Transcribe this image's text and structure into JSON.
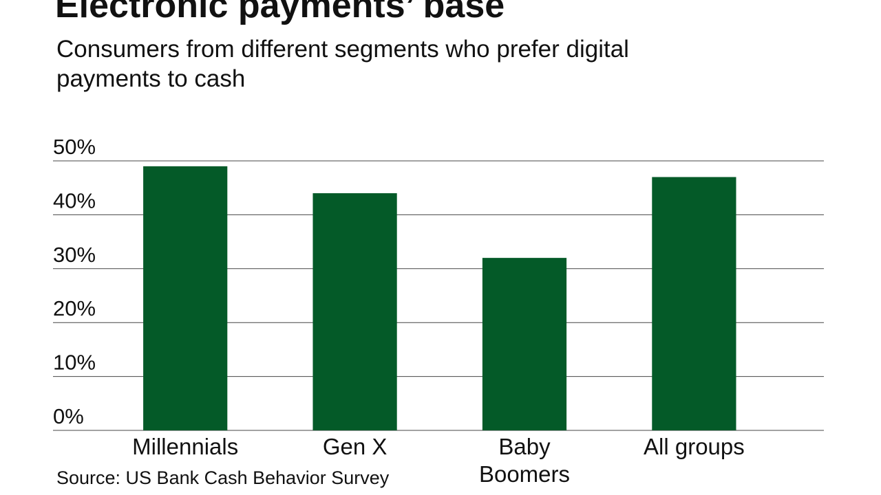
{
  "chart_data": {
    "type": "bar",
    "title": "Electronic payments’ base",
    "subtitle": "Consumers from different segments who prefer digital payments to cash",
    "source": "Source: US Bank Cash Behavior Survey",
    "categories": [
      "Millennials",
      "Gen X",
      "Baby Boomers",
      "All groups"
    ],
    "values": [
      49,
      44,
      32,
      47
    ],
    "color": "#045a28",
    "ylim": [
      0,
      50
    ],
    "yticks": [
      {
        "value": 0,
        "label": "0%"
      },
      {
        "value": 10,
        "label": "10%"
      },
      {
        "value": 20,
        "label": "20%"
      },
      {
        "value": 30,
        "label": "30%"
      },
      {
        "value": 40,
        "label": "40%"
      },
      {
        "value": 50,
        "label": "50%"
      }
    ],
    "grid": true
  }
}
